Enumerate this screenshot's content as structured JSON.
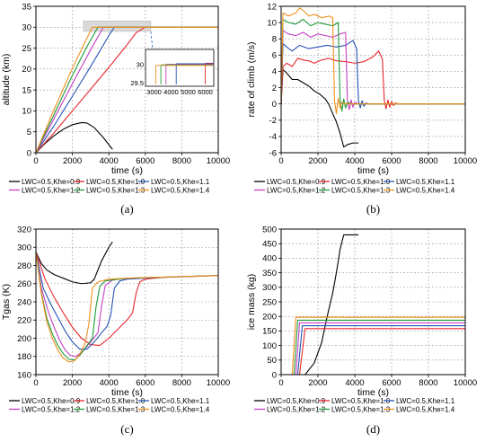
{
  "colors": {
    "Khe=0.9": "#000000",
    "Khe=1.0": "#e8262b",
    "Khe=1.1": "#2353b4",
    "Khe=1.2": "#c53ec5",
    "Khe=1.3": "#1f9a3a",
    "Khe=1.4": "#f08f1b"
  },
  "chart_data": [
    {
      "panel": "a",
      "caption": "(a)",
      "type": "line",
      "xlabel": "time (s)",
      "ylabel": "altitude (km)",
      "xlim": [
        0,
        10000
      ],
      "ylim": [
        0,
        35
      ],
      "xticks": [
        0,
        2000,
        4000,
        6000,
        8000,
        10000
      ],
      "yticks": [
        0,
        5,
        10,
        15,
        20,
        25,
        30,
        35
      ],
      "grid": true,
      "legend": "below",
      "series": [
        {
          "name": "LWC=0.5,Khe=0.9",
          "x": [
            0,
            500,
            1000,
            1500,
            2000,
            2500,
            2800,
            3200,
            3700,
            4200
          ],
          "y": [
            0,
            2.2,
            4.1,
            5.6,
            6.7,
            7.2,
            7.1,
            6.0,
            3.6,
            0.8
          ]
        },
        {
          "name": "LWC=0.5,Khe=1.0",
          "x": [
            0,
            1000,
            2000,
            3000,
            4000,
            5000,
            5500,
            6000,
            10000
          ],
          "y": [
            0,
            4.8,
            10.0,
            15.2,
            20.4,
            25.8,
            28.7,
            30.0,
            30.0
          ]
        },
        {
          "name": "LWC=0.5,Khe=1.1",
          "x": [
            0,
            1000,
            2000,
            3000,
            4000,
            4300,
            10000
          ],
          "y": [
            0,
            6.5,
            13.5,
            20.6,
            28.0,
            30.0,
            30.0
          ]
        },
        {
          "name": "LWC=0.5,Khe=1.2",
          "x": [
            0,
            1000,
            2000,
            3000,
            3700,
            10000
          ],
          "y": [
            0,
            8.2,
            16.5,
            24.6,
            30.0,
            30.0
          ]
        },
        {
          "name": "LWC=0.5,Khe=1.3",
          "x": [
            0,
            1000,
            2000,
            2800,
            3400,
            10000
          ],
          "y": [
            0,
            9.2,
            18.5,
            25.4,
            30.0,
            30.0
          ]
        },
        {
          "name": "LWC=0.5,Khe=1.4",
          "x": [
            0,
            1000,
            2000,
            2800,
            3100,
            10000
          ],
          "y": [
            0,
            10.4,
            20.2,
            27.4,
            30.0,
            30.0
          ]
        }
      ],
      "inset": {
        "xlim": [
          2500,
          6500
        ],
        "ylim": [
          29.4,
          30.4
        ],
        "xticks": [
          3000,
          4000,
          5000,
          6000
        ],
        "yticks": [
          29.5,
          30.0
        ],
        "note_region_x": [
          2600,
          6300
        ],
        "note_region_y": [
          29,
          31.5
        ]
      }
    },
    {
      "panel": "b",
      "caption": "(b)",
      "type": "line",
      "xlabel": "time (s)",
      "ylabel": "rate of climb (m/s)",
      "xlim": [
        0,
        10000
      ],
      "ylim": [
        -6,
        12
      ],
      "xticks": [
        0,
        2000,
        4000,
        6000,
        8000,
        10000
      ],
      "yticks": [
        -6,
        -4,
        -2,
        0,
        2,
        4,
        6,
        8,
        10,
        12
      ],
      "grid": true,
      "legend": "below",
      "series": [
        {
          "name": "LWC=0.5,Khe=0.9",
          "x": [
            0,
            100,
            300,
            600,
            900,
            1200,
            1500,
            1800,
            2100,
            2400,
            2600,
            2800,
            3000,
            3200,
            3400,
            3600,
            3900,
            4200
          ],
          "y": [
            0,
            4.2,
            3.8,
            3.0,
            3.0,
            2.6,
            2.2,
            1.6,
            1.2,
            0.6,
            -0.1,
            -1.2,
            -2.2,
            -3.6,
            -5.3,
            -5.0,
            -4.8,
            -4.8
          ]
        },
        {
          "name": "LWC=0.5,Khe=1.0",
          "x": [
            0,
            100,
            300,
            600,
            900,
            1200,
            1500,
            1800,
            2200,
            2600,
            3000,
            3500,
            4000,
            4500,
            5000,
            5300,
            5500,
            5600,
            5700,
            5800,
            5900,
            6000,
            6100,
            6200,
            6400,
            10000
          ],
          "y": [
            0,
            4.6,
            5.0,
            4.6,
            5.6,
            5.4,
            5.3,
            5.0,
            5.4,
            5.6,
            5.3,
            5.2,
            5.0,
            5.2,
            5.8,
            6.5,
            5.5,
            0.5,
            -0.6,
            0.5,
            -0.4,
            0.3,
            -0.2,
            0.1,
            0.0,
            0.0
          ]
        },
        {
          "name": "LWC=0.5,Khe=1.1",
          "x": [
            0,
            100,
            300,
            600,
            1000,
            1500,
            2000,
            2500,
            3000,
            3500,
            3900,
            4100,
            4200,
            4300,
            4400,
            4500,
            4600,
            4800,
            10000
          ],
          "y": [
            0,
            7.4,
            7.0,
            6.5,
            7.2,
            6.8,
            7.0,
            7.2,
            7.0,
            7.2,
            7.8,
            6.8,
            0.4,
            -0.5,
            0.4,
            -0.3,
            0.1,
            0.0,
            0.0
          ]
        },
        {
          "name": "LWC=0.5,Khe=1.2",
          "x": [
            0,
            100,
            400,
            800,
            1200,
            1600,
            2000,
            2400,
            2800,
            3200,
            3500,
            3600,
            3700,
            3800,
            3900,
            4000,
            4200,
            10000
          ],
          "y": [
            0,
            9.0,
            8.6,
            8.4,
            8.8,
            8.2,
            8.6,
            8.4,
            8.2,
            8.6,
            8.8,
            0.4,
            -0.7,
            0.5,
            -0.4,
            0.2,
            0.0,
            0.0
          ]
        },
        {
          "name": "LWC=0.5,Khe=1.3",
          "x": [
            0,
            100,
            400,
            800,
            1200,
            1600,
            2000,
            2400,
            2800,
            3100,
            3200,
            3300,
            3400,
            3500,
            3600,
            3800,
            10000
          ],
          "y": [
            0,
            10.4,
            10.0,
            9.8,
            10.4,
            9.6,
            10.0,
            9.8,
            9.6,
            10.0,
            0.6,
            -0.9,
            0.6,
            -0.5,
            0.2,
            0.0,
            0.0
          ]
        },
        {
          "name": "LWC=0.5,Khe=1.4",
          "x": [
            0,
            100,
            400,
            800,
            1000,
            1200,
            1500,
            1800,
            2200,
            2600,
            2800,
            2900,
            3000,
            3100,
            3200,
            3300,
            3500,
            10000
          ],
          "y": [
            0,
            11.2,
            10.8,
            11.2,
            11.8,
            11.5,
            10.8,
            11.0,
            10.6,
            10.8,
            10.6,
            0.4,
            -1.2,
            0.7,
            -0.5,
            0.2,
            0.0,
            0.0
          ]
        }
      ]
    },
    {
      "panel": "c",
      "caption": "(c)",
      "type": "line",
      "xlabel": "time (s)",
      "ylabel": "Tgas (K)",
      "xlim": [
        0,
        10000
      ],
      "ylim": [
        160,
        320
      ],
      "xticks": [
        0,
        2000,
        4000,
        6000,
        8000,
        10000
      ],
      "yticks": [
        160,
        180,
        200,
        220,
        240,
        260,
        280,
        300,
        320
      ],
      "grid": true,
      "legend": "below",
      "series": [
        {
          "name": "LWC=0.5,Khe=0.9",
          "x": [
            0,
            300,
            600,
            1000,
            1500,
            2000,
            2500,
            3000,
            3200,
            3600,
            4000,
            4200
          ],
          "y": [
            295,
            282,
            275,
            270,
            266,
            262,
            260,
            261,
            265,
            285,
            300,
            306
          ]
        },
        {
          "name": "LWC=0.5,Khe=1.0",
          "x": [
            0,
            500,
            1000,
            1500,
            2000,
            2500,
            3000,
            3500,
            4000,
            4500,
            5000,
            5300,
            5500,
            5700,
            6000,
            7000,
            10000
          ],
          "y": [
            295,
            265,
            245,
            228,
            212,
            200,
            193,
            192,
            200,
            210,
            220,
            228,
            250,
            262,
            265,
            267,
            269
          ]
        },
        {
          "name": "LWC=0.5,Khe=1.1",
          "x": [
            0,
            400,
            800,
            1200,
            1600,
            2000,
            2400,
            2800,
            3200,
            3600,
            3900,
            4100,
            4300,
            4600,
            5000,
            7000,
            10000
          ],
          "y": [
            295,
            255,
            238,
            223,
            208,
            196,
            188,
            188,
            196,
            206,
            213,
            225,
            255,
            263,
            265,
            267,
            269
          ]
        },
        {
          "name": "LWC=0.5,Khe=1.2",
          "x": [
            0,
            300,
            700,
            1000,
            1300,
            1600,
            1900,
            2200,
            2600,
            3000,
            3400,
            3600,
            3800,
            4200,
            5000,
            10000
          ],
          "y": [
            295,
            255,
            228,
            212,
            198,
            187,
            181,
            180,
            186,
            196,
            206,
            235,
            258,
            264,
            266,
            269
          ]
        },
        {
          "name": "LWC=0.5,Khe=1.3",
          "x": [
            0,
            300,
            600,
            900,
            1200,
            1500,
            1800,
            2100,
            2400,
            2800,
            3100,
            3300,
            3500,
            3800,
            5000,
            10000
          ],
          "y": [
            295,
            250,
            222,
            205,
            192,
            183,
            177,
            176,
            181,
            192,
            200,
            235,
            257,
            263,
            266,
            269
          ]
        },
        {
          "name": "LWC=0.5,Khe=1.4",
          "x": [
            0,
            300,
            600,
            900,
            1200,
            1500,
            1800,
            2100,
            2400,
            2700,
            2900,
            3100,
            3400,
            4000,
            5000,
            10000
          ],
          "y": [
            295,
            248,
            218,
            200,
            187,
            178,
            174,
            175,
            182,
            195,
            215,
            255,
            262,
            265,
            266,
            269
          ]
        }
      ]
    },
    {
      "panel": "d",
      "caption": "(d)",
      "type": "line",
      "xlabel": "time (s)",
      "ylabel": "ice mass (kg)",
      "xlim": [
        0,
        10000
      ],
      "ylim": [
        0,
        500
      ],
      "xticks": [
        0,
        2000,
        4000,
        6000,
        8000,
        10000
      ],
      "yticks": [
        0,
        50,
        100,
        150,
        200,
        250,
        300,
        350,
        400,
        450,
        500
      ],
      "grid": true,
      "legend": "below",
      "series": [
        {
          "name": "LWC=0.5,Khe=0.9",
          "x": [
            0,
            1300,
            1800,
            2200,
            2500,
            2800,
            3000,
            3200,
            3400,
            3800,
            4200
          ],
          "y": [
            0,
            0,
            40,
            110,
            200,
            280,
            350,
            430,
            480,
            480,
            480
          ]
        },
        {
          "name": "LWC=0.5,Khe=1.0",
          "x": [
            0,
            1000,
            1300,
            10000
          ],
          "y": [
            0,
            0,
            158,
            158
          ]
        },
        {
          "name": "LWC=0.5,Khe=1.1",
          "x": [
            0,
            900,
            1150,
            10000
          ],
          "y": [
            0,
            0,
            168,
            168
          ]
        },
        {
          "name": "LWC=0.5,Khe=1.2",
          "x": [
            0,
            800,
            1000,
            10000
          ],
          "y": [
            0,
            0,
            178,
            178
          ]
        },
        {
          "name": "LWC=0.5,Khe=1.3",
          "x": [
            0,
            700,
            900,
            10000
          ],
          "y": [
            0,
            0,
            187,
            187
          ]
        },
        {
          "name": "LWC=0.5,Khe=1.4",
          "x": [
            0,
            600,
            800,
            10000
          ],
          "y": [
            0,
            0,
            197,
            197
          ]
        }
      ]
    }
  ]
}
